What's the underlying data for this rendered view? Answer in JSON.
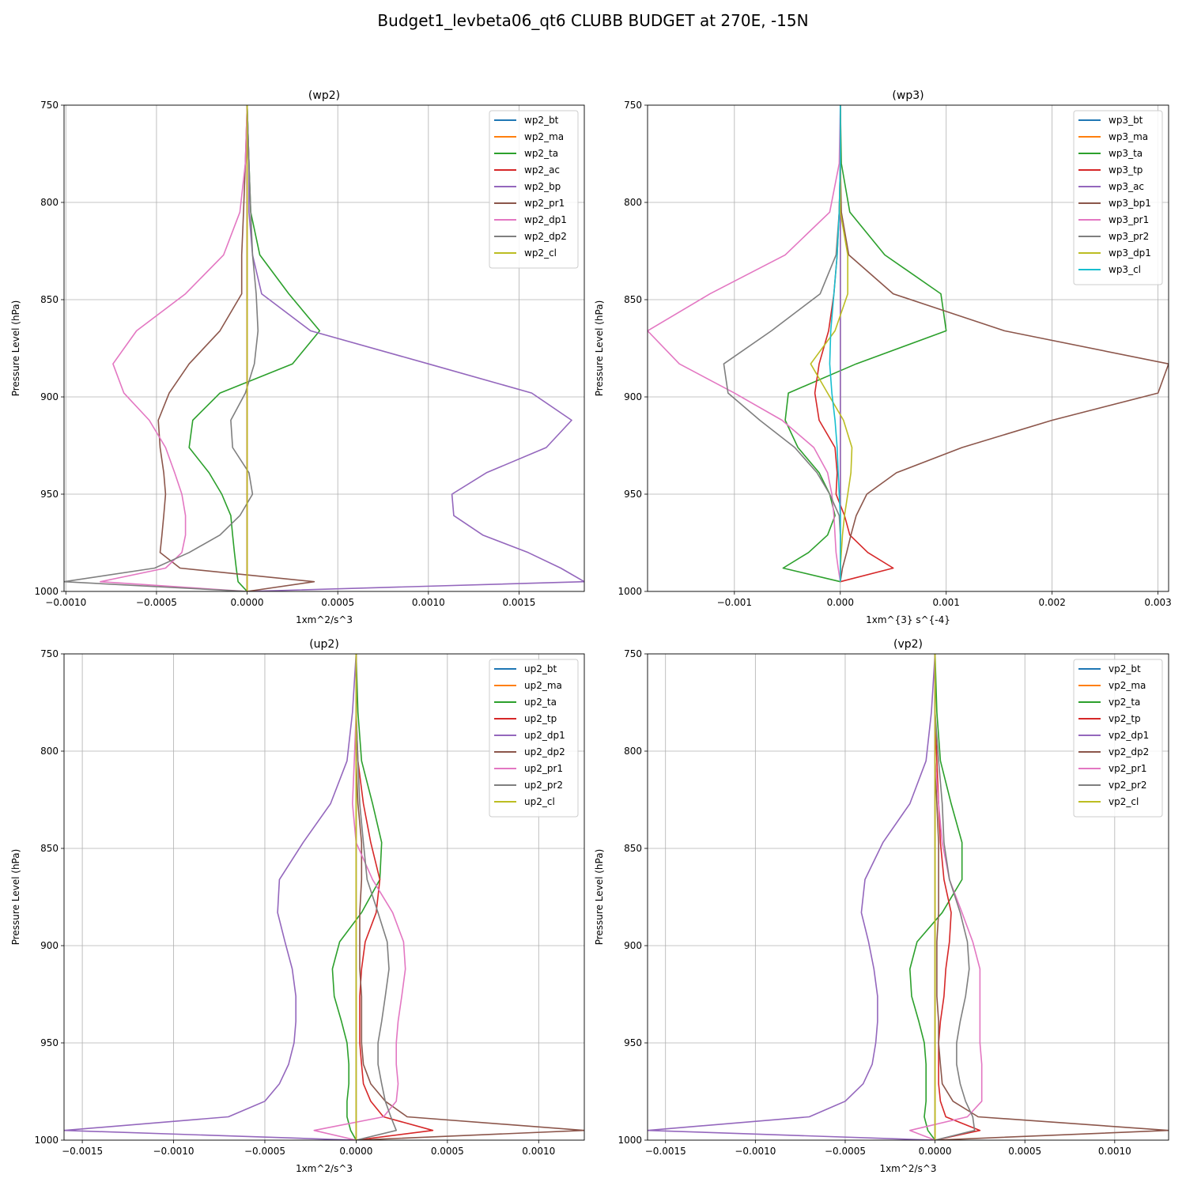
{
  "title": "Budget1_levbeta06_qt6 CLUBB BUDGET at 270E, -15N",
  "colors": [
    "#1f77b4",
    "#ff7f0e",
    "#2ca02c",
    "#d62728",
    "#9467bd",
    "#8c564b",
    "#e377c2",
    "#7f7f7f",
    "#bcbd22",
    "#17becf"
  ],
  "chart_data": [
    {
      "type": "line",
      "title": "(wp2)",
      "xlabel": "1xm^2/s^3",
      "ylabel": "Pressure Level (hPa)",
      "xlim": [
        -0.00101,
        0.00186
      ],
      "ylim": [
        1000,
        750
      ],
      "xticks": [
        -0.001,
        -0.0005,
        0.0,
        0.0005,
        0.001,
        0.0015
      ],
      "xtick_labels": [
        "−0.0010",
        "−0.0005",
        "0.0000",
        "0.0005",
        "0.0010",
        "0.0015"
      ],
      "yticks": [
        750,
        800,
        850,
        900,
        950,
        1000
      ],
      "ytick_labels": [
        "750",
        "800",
        "850",
        "900",
        "950",
        "1000"
      ],
      "grid": true,
      "legend": "upper right",
      "y": [
        750,
        780,
        805,
        827,
        847,
        866,
        883,
        898,
        912,
        926,
        939,
        950,
        961,
        971,
        980,
        988,
        995,
        1000
      ],
      "series": [
        {
          "name": "wp2_bt",
          "values": [
            0,
            0,
            0,
            0,
            0,
            0,
            0,
            0,
            0,
            0,
            0,
            0,
            0,
            0,
            0,
            0,
            0,
            0
          ]
        },
        {
          "name": "wp2_ma",
          "values": [
            0,
            0,
            0,
            0,
            0,
            0,
            0,
            0,
            0,
            0,
            0,
            0,
            0,
            0,
            0,
            0,
            0,
            0
          ]
        },
        {
          "name": "wp2_ta",
          "values": [
            0,
            1e-05,
            2e-05,
            7e-05,
            0.00023,
            0.0004,
            0.00025,
            -0.00015,
            -0.0003,
            -0.00032,
            -0.00021,
            -0.00014,
            -9e-05,
            -8e-05,
            -7e-05,
            -6e-05,
            -5e-05,
            0
          ]
        },
        {
          "name": "wp2_ac",
          "values": [
            0,
            0,
            0,
            0,
            0,
            0,
            0,
            0,
            0,
            0,
            0,
            0,
            0,
            0,
            0,
            0,
            0,
            0
          ]
        },
        {
          "name": "wp2_bp",
          "values": [
            0,
            1e-05,
            1e-05,
            3e-05,
            8e-05,
            0.00035,
            0.001,
            0.00157,
            0.00179,
            0.00165,
            0.00132,
            0.00113,
            0.00114,
            0.0013,
            0.00155,
            0.00173,
            0.00186,
            0
          ]
        },
        {
          "name": "wp2_pr1",
          "values": [
            0,
            -1e-05,
            -2e-05,
            -3e-05,
            -3e-05,
            -0.00015,
            -0.00032,
            -0.00043,
            -0.00049,
            -0.00048,
            -0.00046,
            -0.00045,
            -0.00046,
            -0.00047,
            -0.00048,
            -0.00037,
            0.00037,
            0
          ]
        },
        {
          "name": "wp2_dp1",
          "values": [
            0,
            -1e-05,
            -4e-05,
            -0.00013,
            -0.00034,
            -0.00061,
            -0.00074,
            -0.00068,
            -0.00054,
            -0.00045,
            -0.0004,
            -0.00036,
            -0.00034,
            -0.00034,
            -0.00036,
            -0.00045,
            -0.00081,
            0
          ]
        },
        {
          "name": "wp2_dp2",
          "values": [
            0,
            1e-05,
            2e-05,
            3e-05,
            5e-05,
            6e-05,
            4e-05,
            -1e-05,
            -9e-05,
            -8e-05,
            1e-05,
            3e-05,
            -4e-05,
            -0.00015,
            -0.00032,
            -0.00051,
            -0.00101,
            0
          ]
        },
        {
          "name": "wp2_cl",
          "values": [
            0,
            0,
            0,
            0,
            0,
            0,
            0,
            0,
            0,
            0,
            0,
            0,
            0,
            0,
            0,
            0,
            0,
            0
          ]
        }
      ]
    },
    {
      "type": "line",
      "title": "(wp3)",
      "xlabel": "1xm^{3} s^{-4}",
      "ylabel": "Pressure Level (hPa)",
      "xlim": [
        -0.00182,
        0.0031
      ],
      "ylim": [
        1000,
        750
      ],
      "xticks": [
        -0.001,
        0.0,
        0.001,
        0.002,
        0.003
      ],
      "xtick_labels": [
        "−0.001",
        "0.000",
        "0.001",
        "0.002",
        "0.003"
      ],
      "yticks": [
        750,
        800,
        850,
        900,
        950,
        1000
      ],
      "ytick_labels": [
        "750",
        "800",
        "850",
        "900",
        "950",
        "1000"
      ],
      "grid": true,
      "legend": "upper right",
      "y": [
        750,
        780,
        805,
        827,
        847,
        866,
        883,
        898,
        912,
        926,
        939,
        950,
        961,
        971,
        980,
        988,
        995
      ],
      "series": [
        {
          "name": "wp3_bt",
          "values": [
            0,
            0,
            0,
            0,
            0,
            0,
            0,
            0,
            0,
            0,
            0,
            0,
            0,
            0,
            0,
            0,
            0
          ]
        },
        {
          "name": "wp3_ma",
          "values": [
            0,
            0,
            0,
            0,
            0,
            0,
            0,
            0,
            0,
            0,
            0,
            0,
            0,
            0,
            0,
            0,
            0
          ]
        },
        {
          "name": "wp3_ta",
          "values": [
            0,
            1e-05,
            9e-05,
            0.00042,
            0.00095,
            0.001,
            0.00015,
            -0.00049,
            -0.00052,
            -0.0004,
            -0.0002,
            -0.0001,
            -5e-05,
            -0.00012,
            -0.0003,
            -0.00054,
            0
          ]
        },
        {
          "name": "wp3_tp",
          "values": [
            0,
            0,
            -1e-05,
            -3e-05,
            -6e-05,
            -0.00011,
            -0.0002,
            -0.00024,
            -0.0002,
            -5e-05,
            -3e-05,
            -4e-05,
            4e-05,
            9e-05,
            0.00026,
            0.0005,
            0
          ]
        },
        {
          "name": "wp3_ac",
          "values": [
            0,
            0,
            0,
            0,
            0,
            0,
            0,
            0,
            0,
            0,
            0,
            0,
            0,
            0,
            0,
            0,
            0
          ]
        },
        {
          "name": "wp3_bp1",
          "values": [
            0,
            0,
            1e-05,
            8e-05,
            0.0005,
            0.00155,
            0.0031,
            0.003,
            0.002,
            0.00115,
            0.00053,
            0.00025,
            0.00015,
            0.0001,
            6e-05,
            2e-05,
            0
          ]
        },
        {
          "name": "wp3_pr1",
          "values": [
            0,
            -1e-05,
            -0.0001,
            -0.00052,
            -0.00123,
            -0.00182,
            -0.00152,
            -0.001,
            -0.00055,
            -0.00025,
            -0.00012,
            -8e-05,
            -6e-05,
            -5e-05,
            -4e-05,
            -2e-05,
            0
          ]
        },
        {
          "name": "wp3_pr2",
          "values": [
            0,
            0,
            -1e-05,
            -4e-05,
            -0.00019,
            -0.00065,
            -0.0011,
            -0.00106,
            -0.00076,
            -0.00043,
            -0.00022,
            -0.0001,
            -1e-05,
            0,
            0,
            0,
            0
          ]
        },
        {
          "name": "wp3_dp1",
          "values": [
            0,
            0,
            0,
            7e-05,
            7e-05,
            -5e-05,
            -0.00028,
            -0.00012,
            3e-05,
            0.00011,
            0.0001,
            7e-05,
            4e-05,
            2e-05,
            1e-05,
            0,
            0
          ]
        },
        {
          "name": "wp3_cl",
          "values": [
            0,
            0,
            -1e-05,
            -3e-05,
            -6e-05,
            -9e-05,
            -0.0001,
            -8e-05,
            -5e-05,
            -3e-05,
            -2e-05,
            -1e-05,
            0,
            0,
            0,
            0,
            0
          ]
        }
      ]
    },
    {
      "type": "line",
      "title": "(up2)",
      "xlabel": "1xm^2/s^3",
      "ylabel": "Pressure Level (hPa)",
      "xlim": [
        -0.0016,
        0.00125
      ],
      "ylim": [
        1000,
        750
      ],
      "xticks": [
        -0.0015,
        -0.001,
        -0.0005,
        0.0,
        0.0005,
        0.001
      ],
      "xtick_labels": [
        "−0.0015",
        "−0.0010",
        "−0.0005",
        "0.0000",
        "0.0005",
        "0.0010"
      ],
      "yticks": [
        750,
        800,
        850,
        900,
        950,
        1000
      ],
      "ytick_labels": [
        "750",
        "800",
        "850",
        "900",
        "950",
        "1000"
      ],
      "grid": true,
      "legend": "upper right",
      "y": [
        750,
        780,
        805,
        827,
        847,
        866,
        883,
        898,
        912,
        926,
        939,
        950,
        961,
        971,
        980,
        988,
        995,
        1000
      ],
      "series": [
        {
          "name": "up2_bt",
          "values": [
            0,
            0,
            0,
            0,
            0,
            0,
            0,
            0,
            0,
            0,
            0,
            0,
            0,
            0,
            0,
            0,
            0,
            0
          ]
        },
        {
          "name": "up2_ma",
          "values": [
            0,
            0,
            0,
            0,
            0,
            0,
            0,
            0,
            0,
            0,
            0,
            0,
            0,
            0,
            0,
            0,
            0,
            0
          ]
        },
        {
          "name": "up2_ta",
          "values": [
            0,
            1e-05,
            3e-05,
            9e-05,
            0.00014,
            0.00013,
            3e-05,
            -9e-05,
            -0.00013,
            -0.00012,
            -8e-05,
            -5e-05,
            -4e-05,
            -4e-05,
            -5e-05,
            -5e-05,
            -3e-05,
            0
          ]
        },
        {
          "name": "up2_tp",
          "values": [
            0,
            0,
            1e-05,
            4e-05,
            8e-05,
            0.00013,
            0.00011,
            5e-05,
            3e-05,
            2e-05,
            2e-05,
            2e-05,
            3e-05,
            4e-05,
            8e-05,
            0.00015,
            0.00042,
            0
          ]
        },
        {
          "name": "up2_dp1",
          "values": [
            0,
            -2e-05,
            -5e-05,
            -0.00014,
            -0.00029,
            -0.00042,
            -0.00043,
            -0.00039,
            -0.00035,
            -0.00033,
            -0.00033,
            -0.00034,
            -0.00037,
            -0.00042,
            -0.0005,
            -0.0007,
            -0.0016,
            0
          ]
        },
        {
          "name": "up2_dp2",
          "values": [
            0,
            0,
            0,
            1e-05,
            3e-05,
            3e-05,
            2e-05,
            2e-05,
            2e-05,
            3e-05,
            3e-05,
            3e-05,
            4e-05,
            8e-05,
            0.00016,
            0.00028,
            0.00125,
            0
          ]
        },
        {
          "name": "up2_pr1",
          "values": [
            0,
            0,
            -1e-05,
            -2e-05,
            0,
            9e-05,
            0.0002,
            0.00026,
            0.00027,
            0.00025,
            0.00023,
            0.00022,
            0.00022,
            0.00023,
            0.00022,
            0.00015,
            -0.00023,
            0
          ]
        },
        {
          "name": "up2_pr2",
          "values": [
            0,
            0,
            1e-05,
            2e-05,
            4e-05,
            6e-05,
            0.00012,
            0.00017,
            0.00018,
            0.00016,
            0.00014,
            0.00012,
            0.00012,
            0.00014,
            0.00016,
            0.00019,
            0.00022,
            0
          ]
        },
        {
          "name": "up2_cl",
          "values": [
            0,
            0,
            0,
            0,
            0,
            0,
            0,
            0,
            0,
            0,
            0,
            0,
            0,
            0,
            0,
            0,
            0,
            0
          ]
        }
      ]
    },
    {
      "type": "line",
      "title": "(vp2)",
      "xlabel": "1xm^2/s^3",
      "ylabel": "Pressure Level (hPa)",
      "xlim": [
        -0.0016,
        0.0013
      ],
      "ylim": [
        1000,
        750
      ],
      "xticks": [
        -0.0015,
        -0.001,
        -0.0005,
        0.0,
        0.0005,
        0.001
      ],
      "xtick_labels": [
        "−0.0015",
        "−0.0010",
        "−0.0005",
        "0.0000",
        "0.0005",
        "0.0010"
      ],
      "yticks": [
        750,
        800,
        850,
        900,
        950,
        1000
      ],
      "ytick_labels": [
        "750",
        "800",
        "850",
        "900",
        "950",
        "1000"
      ],
      "grid": true,
      "legend": "upper right",
      "y": [
        750,
        780,
        805,
        827,
        847,
        866,
        883,
        898,
        912,
        926,
        939,
        950,
        961,
        971,
        980,
        988,
        995,
        1000
      ],
      "series": [
        {
          "name": "vp2_bt",
          "values": [
            0,
            0,
            0,
            0,
            0,
            0,
            0,
            0,
            0,
            0,
            0,
            0,
            0,
            0,
            0,
            0,
            0,
            0
          ]
        },
        {
          "name": "vp2_ma",
          "values": [
            0,
            0,
            0,
            0,
            0,
            0,
            0,
            0,
            0,
            0,
            0,
            0,
            0,
            0,
            0,
            0,
            0,
            0
          ]
        },
        {
          "name": "vp2_ta",
          "values": [
            0,
            1e-05,
            3e-05,
            9e-05,
            0.00015,
            0.00015,
            4e-05,
            -0.0001,
            -0.00014,
            -0.00013,
            -9e-05,
            -6e-05,
            -5e-05,
            -5e-05,
            -5e-05,
            -6e-05,
            -4e-05,
            0
          ]
        },
        {
          "name": "vp2_tp",
          "values": [
            0,
            0,
            1e-05,
            2e-05,
            3e-05,
            5e-05,
            9e-05,
            8e-05,
            6e-05,
            5e-05,
            3e-05,
            2e-05,
            2e-05,
            2e-05,
            3e-05,
            6e-05,
            0.00025,
            0
          ]
        },
        {
          "name": "vp2_dp1",
          "values": [
            0,
            -2e-05,
            -5e-05,
            -0.00014,
            -0.00029,
            -0.00039,
            -0.00041,
            -0.00037,
            -0.00034,
            -0.00032,
            -0.00032,
            -0.00033,
            -0.00035,
            -0.0004,
            -0.0005,
            -0.0007,
            -0.0016,
            0
          ]
        },
        {
          "name": "vp2_dp2",
          "values": [
            0,
            0,
            0,
            1e-05,
            2e-05,
            2e-05,
            2e-05,
            1e-05,
            1e-05,
            1e-05,
            2e-05,
            2e-05,
            3e-05,
            4e-05,
            0.0001,
            0.00024,
            0.0013,
            0
          ]
        },
        {
          "name": "vp2_pr1",
          "values": [
            0,
            0,
            0,
            2e-05,
            4e-05,
            8e-05,
            0.00015,
            0.00021,
            0.00025,
            0.00025,
            0.00025,
            0.00025,
            0.00026,
            0.00026,
            0.00026,
            0.00018,
            -0.00014,
            0
          ]
        },
        {
          "name": "vp2_pr2",
          "values": [
            0,
            0,
            2e-05,
            4e-05,
            5e-05,
            8e-05,
            0.00014,
            0.00018,
            0.00019,
            0.00017,
            0.00014,
            0.00012,
            0.00012,
            0.00014,
            0.00017,
            0.00021,
            0.00022,
            0
          ]
        },
        {
          "name": "vp2_cl",
          "values": [
            0,
            0,
            0,
            0,
            0,
            0,
            0,
            0,
            0,
            0,
            0,
            0,
            0,
            0,
            0,
            0,
            0,
            0
          ]
        }
      ]
    }
  ]
}
